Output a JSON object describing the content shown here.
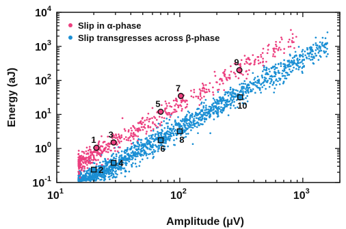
{
  "chart_data": {
    "type": "scatter",
    "x_scale": "log",
    "y_scale": "log",
    "xlim": [
      10,
      2000
    ],
    "ylim": [
      0.1,
      10000
    ],
    "xlabel": "Amplitude (μV)",
    "ylabel": "Energy (aJ)",
    "x_ticks": [
      {
        "value": 10,
        "base": "10",
        "exp": "1"
      },
      {
        "value": 100,
        "base": "10",
        "exp": "2"
      },
      {
        "value": 1000,
        "base": "10",
        "exp": "3"
      }
    ],
    "y_ticks": [
      {
        "value": 0.1,
        "base": "10",
        "exp": "-1"
      },
      {
        "value": 1,
        "base": "10",
        "exp": "0"
      },
      {
        "value": 10,
        "base": "10",
        "exp": "1"
      },
      {
        "value": 100,
        "base": "10",
        "exp": "2"
      },
      {
        "value": 1000,
        "base": "10",
        "exp": "3"
      },
      {
        "value": 10000,
        "base": "10",
        "exp": "4"
      }
    ],
    "grid": false,
    "legend_position": "top-left",
    "series": [
      {
        "name": "Slip in α-phase",
        "color": "#ec3f7f",
        "marker": "dot",
        "trend": {
          "a": 0.00123,
          "b": 2.1
        },
        "x_range": [
          15,
          900
        ],
        "spread_decades": 0.28,
        "n_points": 560
      },
      {
        "name": "Slip transgresses across β-phase",
        "color": "#1b8fd4",
        "marker": "dot",
        "trend": {
          "a": 0.00032,
          "b": 2.05
        },
        "x_range": [
          15,
          1600
        ],
        "spread_decades": 0.3,
        "n_points": 1900
      }
    ],
    "annotations": [
      {
        "label": "1",
        "x": 21,
        "y": 1.05,
        "marker": "circle",
        "series": "Slip in α-phase",
        "label_pos": "above"
      },
      {
        "label": "3",
        "x": 29,
        "y": 1.5,
        "marker": "circle",
        "series": "Slip in α-phase",
        "label_pos": "above"
      },
      {
        "label": "5",
        "x": 70,
        "y": 12,
        "marker": "circle",
        "series": "Slip in α-phase",
        "label_pos": "above"
      },
      {
        "label": "7",
        "x": 102,
        "y": 35,
        "marker": "circle",
        "series": "Slip in α-phase",
        "label_pos": "above"
      },
      {
        "label": "9",
        "x": 305,
        "y": 200,
        "marker": "circle",
        "series": "Slip in α-phase",
        "label_pos": "above"
      },
      {
        "label": "2",
        "x": 20,
        "y": 0.24,
        "marker": "square",
        "series": "Slip transgresses across β-phase",
        "label_pos": "right"
      },
      {
        "label": "4",
        "x": 29,
        "y": 0.38,
        "marker": "square",
        "series": "Slip transgresses across β-phase",
        "label_pos": "right"
      },
      {
        "label": "6",
        "x": 70,
        "y": 1.75,
        "marker": "square",
        "series": "Slip transgresses across β-phase",
        "label_pos": "below"
      },
      {
        "label": "8",
        "x": 100,
        "y": 3.2,
        "marker": "square",
        "series": "Slip transgresses across β-phase",
        "label_pos": "below"
      },
      {
        "label": "10",
        "x": 310,
        "y": 32,
        "marker": "square",
        "series": "Slip transgresses across β-phase",
        "label_pos": "below"
      }
    ]
  }
}
